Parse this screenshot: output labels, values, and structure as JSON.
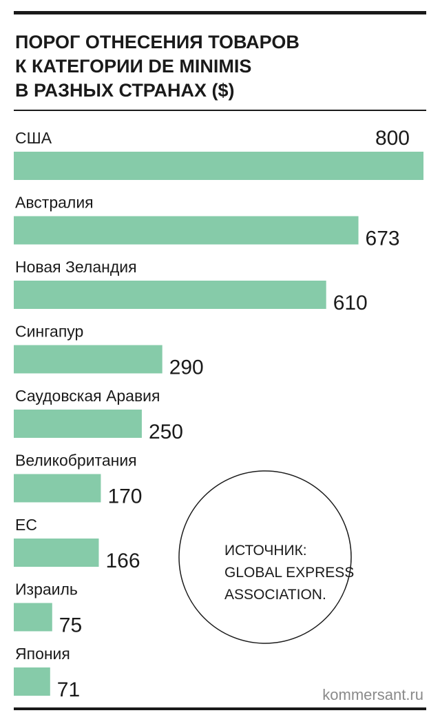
{
  "chart_data": {
    "type": "bar",
    "title": [
      "ПОРОГ ОТНЕСЕНИЯ ТОВАРОВ",
      "К КАТЕГОРИИ DE MINIMIS",
      "В РАЗНЫХ СТРАНАХ ($)"
    ],
    "categories": [
      "США",
      "Австралия",
      "Новая Зеландия",
      "Сингапур",
      "Саудовская Аравия",
      "Великобритания",
      "ЕС",
      "Израиль",
      "Япония"
    ],
    "values": [
      800,
      673,
      610,
      290,
      250,
      170,
      166,
      75,
      71
    ],
    "color": "#86cba9",
    "source": [
      "ИСТОЧНИК:",
      "GLOBAL EXPRESS",
      "ASSOCIATION."
    ],
    "footer": "kommersant.ru"
  }
}
